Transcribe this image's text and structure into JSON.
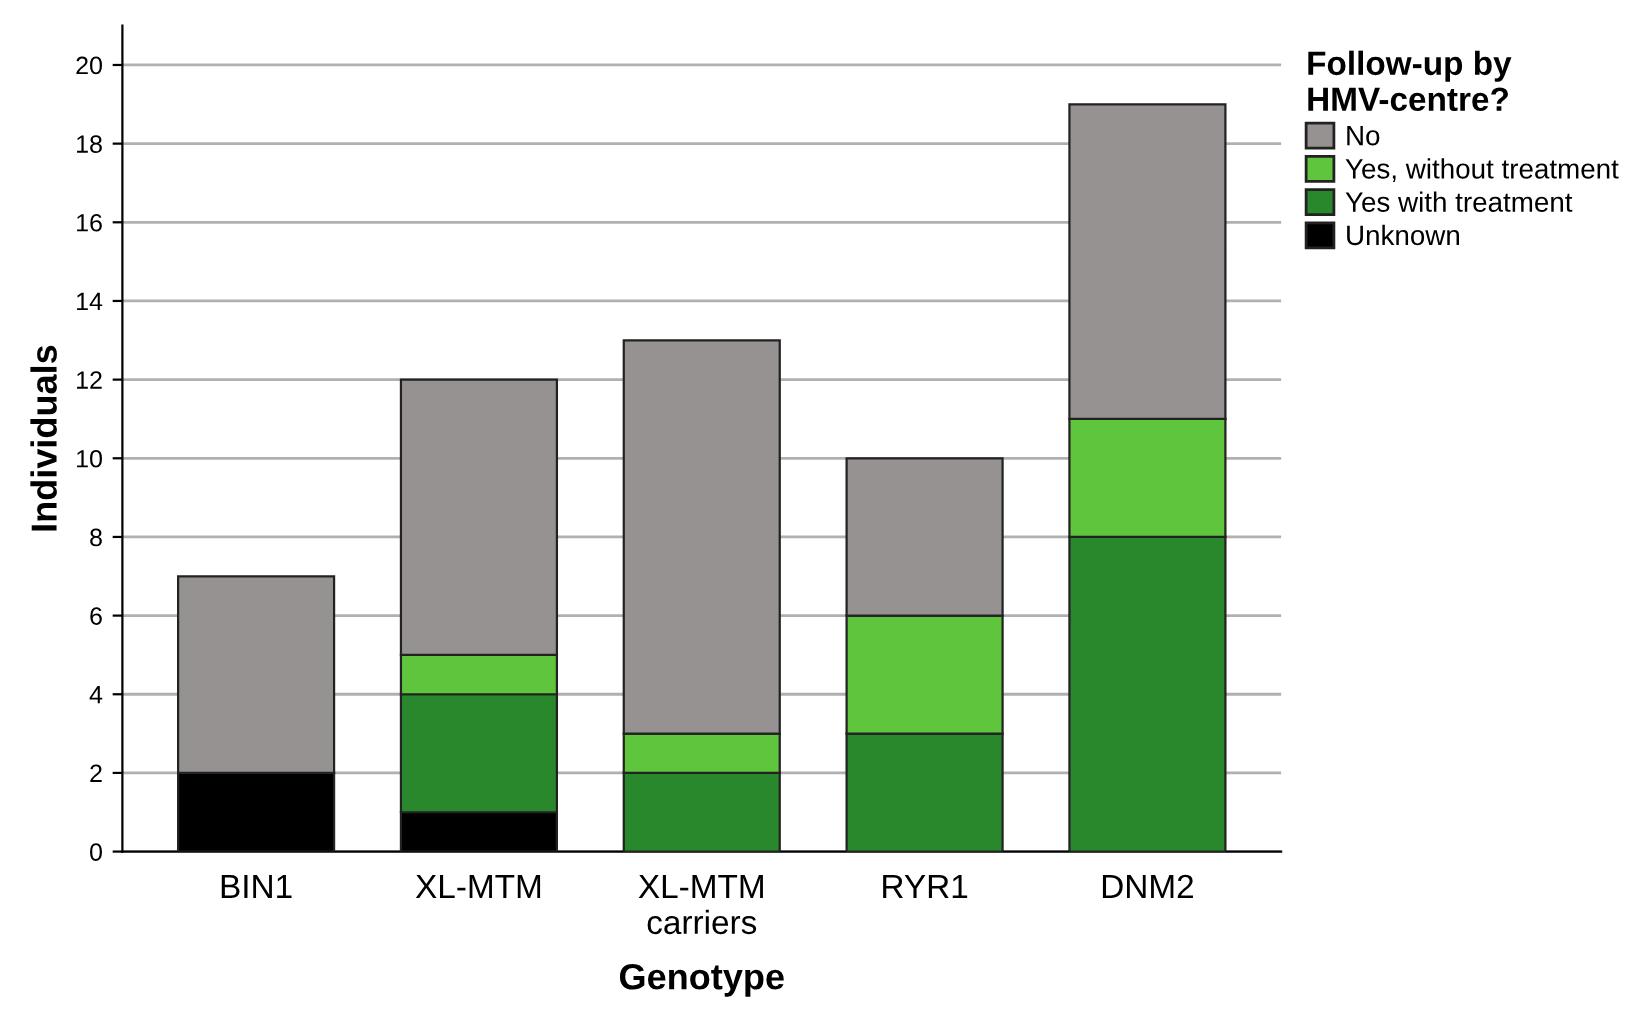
{
  "chart_data": {
    "type": "bar",
    "stacked": true,
    "xlabel": "Genotype",
    "ylabel": "Individuals",
    "legend_title": "Follow-up by\nHMV-centre?",
    "categories": [
      "BIN1",
      "XL-MTM",
      "XL-MTM\ncarriers",
      "RYR1",
      "DNM2"
    ],
    "series": [
      {
        "name": "Unknown",
        "color": "#000000",
        "values": [
          2,
          1,
          0,
          0,
          0
        ]
      },
      {
        "name": "Yes with treatment",
        "color": "#2a882c",
        "values": [
          0,
          3,
          2,
          3,
          8
        ]
      },
      {
        "name": "Yes, without treatment",
        "color": "#5ec53c",
        "values": [
          0,
          1,
          1,
          3,
          3
        ]
      },
      {
        "name": "No",
        "color": "#969292",
        "values": [
          5,
          7,
          10,
          4,
          8
        ]
      }
    ],
    "ylim": [
      0,
      21
    ],
    "yticks": [
      0,
      2,
      4,
      6,
      8,
      10,
      12,
      14,
      16,
      18,
      20
    ],
    "grid": "y",
    "legend": "top right"
  }
}
